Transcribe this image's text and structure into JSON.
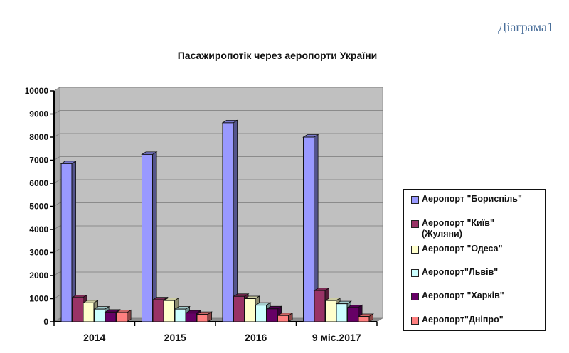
{
  "corner_label": "Діаграма1",
  "chart_data": {
    "type": "bar",
    "style": "3d-clustered",
    "title": "Пасажиропотік через аеропорти України",
    "xlabel": "",
    "ylabel": "",
    "ylim": [
      0,
      10000
    ],
    "yticks": [
      0,
      1000,
      2000,
      3000,
      4000,
      5000,
      6000,
      7000,
      8000,
      9000,
      10000
    ],
    "grid": true,
    "legend_position": "right",
    "categories": [
      "2014",
      "2015",
      "2016",
      "9 міс.2017"
    ],
    "series": [
      {
        "name": "Аеропорт \"Бориспіль\"",
        "color": "#9999ff",
        "values": [
          6850,
          7250,
          8620,
          8000
        ]
      },
      {
        "name": "Аеропорт \"Київ\" (Жуляни)",
        "color": "#993366",
        "values": [
          1050,
          950,
          1100,
          1350
        ]
      },
      {
        "name": "Аеропорт \"Одеса\"",
        "color": "#ffffcc",
        "values": [
          820,
          920,
          1000,
          920
        ]
      },
      {
        "name": "Аеропорт\"Львів\"",
        "color": "#ccffff",
        "values": [
          550,
          550,
          720,
          780
        ]
      },
      {
        "name": "Аеропорт \"Харків\"",
        "color": "#660066",
        "values": [
          420,
          380,
          560,
          620
        ]
      },
      {
        "name": "Аеропорт\"Дніпро\"",
        "color": "#ff8080",
        "values": [
          400,
          320,
          270,
          230
        ]
      }
    ]
  },
  "legend": {
    "items": [
      {
        "label": "Аеропорт \"Бориспіль\"",
        "color": "#9999ff"
      },
      {
        "label": "Аеропорт \"Київ\" (Жуляни)",
        "color": "#993366"
      },
      {
        "label": "Аеропорт \"Одеса\"",
        "color": "#ffffcc"
      },
      {
        "label": "Аеропорт\"Львів\"",
        "color": "#ccffff"
      },
      {
        "label": "Аеропорт \"Харків\"",
        "color": "#660066"
      },
      {
        "label": "Аеропорт\"Дніпро\"",
        "color": "#ff8080"
      }
    ]
  },
  "colors": {
    "plot_background": "#c0c0c0",
    "gridline": "#7a7a7a",
    "axis": "#000000",
    "corner_label": "#4a6f9a"
  }
}
